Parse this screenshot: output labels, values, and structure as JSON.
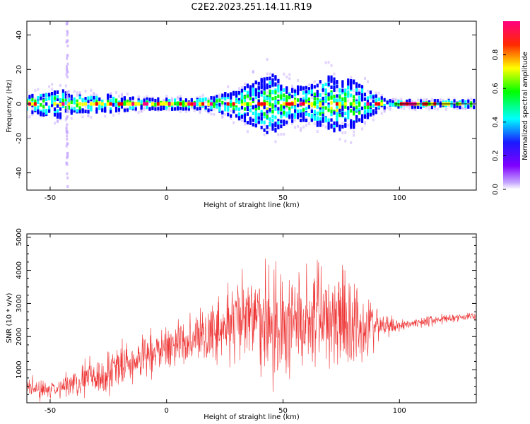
{
  "title": "C2E2.2023.251.14.11.R19",
  "chart_data": [
    {
      "type": "heatmap",
      "xlabel": "Height of straight line (km)",
      "ylabel": "Frequency (Hz)",
      "xlim": [
        -60,
        133
      ],
      "ylim": [
        -50,
        48
      ],
      "xticks": [
        -50,
        0,
        50,
        100
      ],
      "yticks": [
        -40,
        -20,
        0,
        20,
        40
      ],
      "colorbar": {
        "label": "Normalized spectral amplitude",
        "range": [
          0,
          1
        ],
        "ticks": [
          "0.0",
          "0.2",
          "0.4",
          "0.6",
          "0.8"
        ],
        "colormap": [
          "#ffffff",
          "#8000ff",
          "#0000ff",
          "#00ffff",
          "#00ff00",
          "#ffff00",
          "#ff0000",
          "#ff0080"
        ]
      },
      "tone_line_hz": 0,
      "intensity_profile": {
        "x": [
          -60,
          -45,
          -40,
          -25,
          -20,
          -10,
          0,
          10,
          20,
          30,
          40,
          45,
          50,
          55,
          60,
          70,
          80,
          90,
          95,
          100,
          133
        ],
        "half_width_hz": [
          5,
          8,
          5,
          5,
          4,
          3,
          3,
          3,
          4,
          8,
          14,
          18,
          12,
          10,
          10,
          16,
          14,
          5,
          2,
          2,
          2
        ]
      }
    },
    {
      "type": "line",
      "xlabel": "Height of straight line (km)",
      "ylabel": "SNR (10 * v/v)",
      "xlim": [
        -60,
        133
      ],
      "ylim": [
        0,
        5100
      ],
      "xticks": [
        -50,
        0,
        50,
        100
      ],
      "yticks": [
        1000,
        2000,
        3000,
        4000,
        5000
      ],
      "color": "#ee3333",
      "envelope": {
        "x": [
          -60,
          -50,
          -40,
          -30,
          -20,
          -10,
          0,
          10,
          20,
          30,
          40,
          50,
          60,
          70,
          80,
          90,
          95,
          100,
          110,
          120,
          133
        ],
        "mean": [
          420,
          380,
          600,
          800,
          1050,
          1350,
          1700,
          1900,
          2150,
          2350,
          2550,
          2350,
          2500,
          2650,
          2450,
          2300,
          2300,
          2350,
          2450,
          2550,
          2620
        ],
        "spread": [
          350,
          300,
          450,
          650,
          700,
          650,
          600,
          800,
          900,
          1400,
          1800,
          1700,
          1700,
          2000,
          1600,
          700,
          300,
          180,
          160,
          150,
          150
        ]
      }
    }
  ]
}
